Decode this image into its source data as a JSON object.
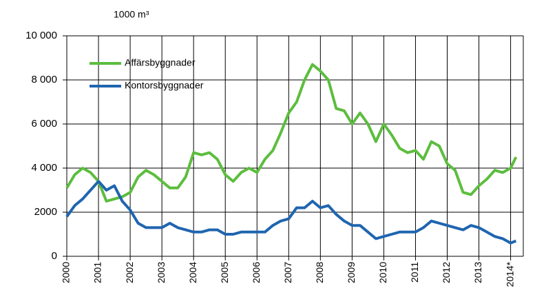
{
  "chart_data": {
    "type": "line",
    "unit_label": "1000 m³",
    "x": [
      2000,
      2000.25,
      2000.5,
      2000.75,
      2001,
      2001.25,
      2001.5,
      2001.75,
      2002,
      2002.25,
      2002.5,
      2002.75,
      2003,
      2003.25,
      2003.5,
      2003.75,
      2004,
      2004.25,
      2004.5,
      2004.75,
      2005,
      2005.25,
      2005.5,
      2005.75,
      2006,
      2006.25,
      2006.5,
      2006.75,
      2007,
      2007.25,
      2007.5,
      2007.75,
      2008,
      2008.25,
      2008.5,
      2008.75,
      2009,
      2009.25,
      2009.5,
      2009.75,
      2010,
      2010.25,
      2010.5,
      2010.75,
      2011,
      2011.25,
      2011.5,
      2011.75,
      2012,
      2012.25,
      2012.5,
      2012.75,
      2013,
      2013.25,
      2013.5,
      2013.75,
      2014,
      2014.17
    ],
    "series": [
      {
        "name": "Affärsbyggnader",
        "color": "#5cbd3e",
        "values": [
          3100,
          3700,
          4000,
          3800,
          3400,
          2500,
          2600,
          2700,
          2900,
          3600,
          3900,
          3700,
          3400,
          3100,
          3100,
          3600,
          4700,
          4600,
          4700,
          4400,
          3700,
          3400,
          3800,
          4000,
          3800,
          4400,
          4800,
          5600,
          6500,
          7000,
          8000,
          8700,
          8400,
          8000,
          6700,
          6600,
          6000,
          6500,
          6000,
          5200,
          6000,
          5500,
          4900,
          4700,
          4800,
          4400,
          5200,
          5000,
          4200,
          3900,
          2900,
          2800,
          3200,
          3500,
          3900,
          3800,
          4000,
          4500
        ]
      },
      {
        "name": "Kontorsbyggnader",
        "color": "#1f65b0",
        "values": [
          1800,
          2300,
          2600,
          3000,
          3400,
          3000,
          3200,
          2500,
          2100,
          1500,
          1300,
          1300,
          1300,
          1500,
          1300,
          1200,
          1100,
          1100,
          1200,
          1200,
          1000,
          1000,
          1100,
          1100,
          1100,
          1100,
          1400,
          1600,
          1700,
          2200,
          2200,
          2500,
          2200,
          2300,
          1900,
          1600,
          1400,
          1400,
          1100,
          800,
          900,
          1000,
          1100,
          1100,
          1100,
          1300,
          1600,
          1500,
          1400,
          1300,
          1200,
          1400,
          1300,
          1100,
          900,
          800,
          600,
          700
        ]
      }
    ],
    "xlim": [
      2000,
      2014.4
    ],
    "xticks": [
      2000,
      2001,
      2002,
      2003,
      2004,
      2005,
      2006,
      2007,
      2008,
      2009,
      2010,
      2011,
      2012,
      2013,
      {
        "value": 2014,
        "label": "2014*"
      }
    ],
    "ylim": [
      0,
      10000
    ],
    "yticks": [
      0,
      2000,
      {
        "value": 4000,
        "label": "4 000"
      },
      {
        "value": 6000,
        "label": "6 000"
      },
      {
        "value": 8000,
        "label": "8 000"
      },
      {
        "value": 10000,
        "label": "10 000"
      }
    ],
    "grid": true
  }
}
